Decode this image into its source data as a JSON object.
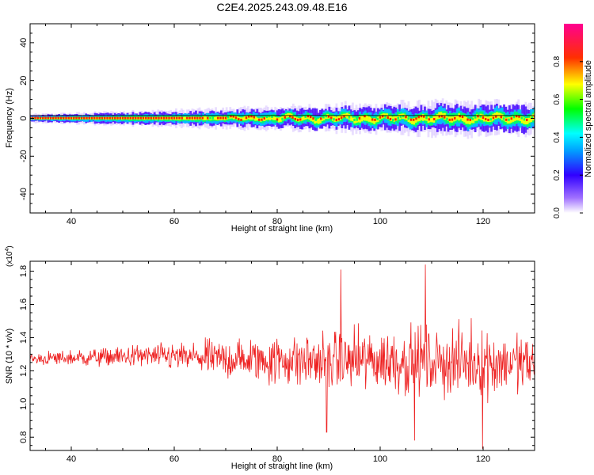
{
  "title": "C2E4.2025.243.09.48.E16",
  "chart_data": [
    {
      "type": "heatmap",
      "xlabel": "Height of straight line (km)",
      "ylabel": "Frequency (Hz)",
      "xlim": [
        32,
        130
      ],
      "ylim": [
        -50,
        50
      ],
      "xticks": [
        40,
        60,
        80,
        100,
        120
      ],
      "yticks": [
        -40,
        -20,
        0,
        20,
        40
      ],
      "description_values": {
        "band_center_hz": 0,
        "band_halfwidth_hz_low_alt": 2,
        "band_halfwidth_hz_high_alt": 8
      },
      "colorbar": {
        "label": "Normalized spectral amplitude",
        "range": [
          0.0,
          1.0
        ],
        "ticks": [
          "0.0",
          "0.2",
          "0.4",
          "0.6",
          "0.8"
        ],
        "colors": [
          "#ffffff",
          "#8000ff",
          "#0000ff",
          "#00ffff",
          "#00ff00",
          "#ffff00",
          "#ff0000",
          "#ff0080"
        ]
      }
    },
    {
      "type": "line",
      "xlabel": "Height of straight line (km)",
      "ylabel": "SNR (10 * v/v)",
      "exponent_label": "(x10",
      "exponent": "4",
      "exponent_close": ")",
      "xlim": [
        32,
        130
      ],
      "ylim": [
        0.72,
        1.86
      ],
      "xticks": [
        40,
        60,
        80,
        100,
        120
      ],
      "yticks": [
        "0.8",
        "1.0",
        "1.2",
        "1.4",
        "1.6",
        "1.8"
      ],
      "color": "#ee2222",
      "series": [
        {
          "x_start": 32,
          "x_end": 130,
          "points": 980,
          "envelope": [
            {
              "x": 32,
              "center": 1.27,
              "amplitude": 0.05
            },
            {
              "x": 55,
              "center": 1.29,
              "amplitude": 0.09
            },
            {
              "x": 70,
              "center": 1.27,
              "amplitude": 0.16
            },
            {
              "x": 85,
              "center": 1.26,
              "amplitude": 0.22
            },
            {
              "x": 100,
              "center": 1.26,
              "amplitude": 0.26
            },
            {
              "x": 120,
              "center": 1.25,
              "amplitude": 0.27
            },
            {
              "x": 130,
              "center": 1.24,
              "amplitude": 0.22
            }
          ],
          "extrema": [
            {
              "x": 108.8,
              "y": 1.84
            },
            {
              "x": 92.4,
              "y": 1.81
            },
            {
              "x": 119.9,
              "y": 0.73
            },
            {
              "x": 89.6,
              "y": 0.83
            },
            {
              "x": 106.7,
              "y": 0.78
            }
          ]
        }
      ]
    }
  ]
}
